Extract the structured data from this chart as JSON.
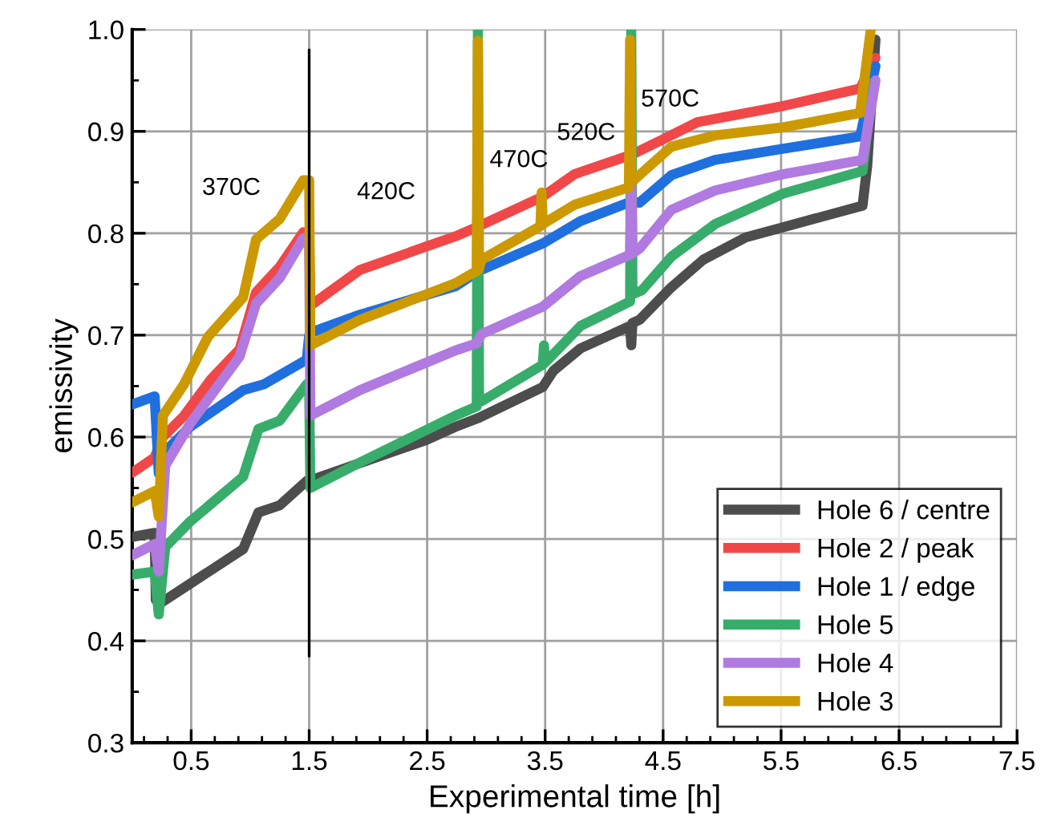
{
  "chart_data": {
    "type": "line",
    "xlabel": "Experimental time [h]",
    "ylabel": "emissivity",
    "xlim": [
      0,
      7.5
    ],
    "ylim": [
      0.3,
      1.0
    ],
    "xticks": [
      {
        "value": 0.1,
        "label": null
      },
      {
        "value": 0.3,
        "label": null
      },
      0.5,
      {
        "value": 0.7,
        "label": null
      },
      {
        "value": 0.9,
        "label": null
      },
      {
        "value": 1.1,
        "label": null
      },
      {
        "value": 1.3,
        "label": null
      },
      1.5,
      {
        "value": 1.7,
        "label": null
      },
      {
        "value": 1.9,
        "label": null
      },
      {
        "value": 2.1,
        "label": null
      },
      {
        "value": 2.3,
        "label": null
      },
      2.5,
      {
        "value": 2.7,
        "label": null
      },
      {
        "value": 2.9,
        "label": null
      },
      {
        "value": 3.1,
        "label": null
      },
      {
        "value": 3.3,
        "label": null
      },
      3.5,
      {
        "value": 3.7,
        "label": null
      },
      {
        "value": 3.9,
        "label": null
      },
      {
        "value": 4.1,
        "label": null
      },
      {
        "value": 4.3,
        "label": null
      },
      4.5,
      {
        "value": 4.7,
        "label": null
      },
      {
        "value": 4.9,
        "label": null
      },
      {
        "value": 5.1,
        "label": null
      },
      {
        "value": 5.3,
        "label": null
      },
      5.5,
      {
        "value": 5.7,
        "label": null
      },
      {
        "value": 5.9,
        "label": null
      },
      {
        "value": 6.1,
        "label": null
      },
      {
        "value": 6.3,
        "label": null
      },
      6.5,
      {
        "value": 6.7,
        "label": null
      },
      {
        "value": 6.9,
        "label": null
      },
      {
        "value": 7.1,
        "label": null
      },
      {
        "value": 7.3,
        "label": null
      },
      7.5
    ],
    "yticks": [
      0.3,
      {
        "value": 0.35,
        "label": null
      },
      0.4,
      {
        "value": 0.45,
        "label": null
      },
      0.5,
      {
        "value": 0.55,
        "label": null
      },
      0.6,
      {
        "value": 0.65,
        "label": null
      },
      0.7,
      {
        "value": 0.75,
        "label": null
      },
      0.8,
      {
        "value": 0.85,
        "label": null
      },
      0.9,
      {
        "value": 0.95,
        "label": null
      },
      {
        "value": 1.0,
        "label": "1.0"
      }
    ],
    "grid": true,
    "legend": "bottom right",
    "marker": "none",
    "line_style": "solid",
    "annotations": [
      "370C",
      "420C",
      "470C",
      "520C",
      "570C"
    ],
    "series": [
      {
        "color": "#000000",
        "x": [
          1.5,
          1.5
        ],
        "values": [
          0.385,
          0.98
        ]
      },
      {
        "name": "Hole 6 / centre",
        "color": "#4d4d4d",
        "x": [
          0,
          0.19,
          0.2,
          0.24,
          0.94,
          1.07,
          1.25,
          1.48,
          1.545,
          2.49,
          2.74,
          2.94,
          3.48,
          3.57,
          3.8,
          4.22,
          4.23,
          4.24,
          4.3,
          4.57,
          4.84,
          5.2,
          5.52,
          6.19,
          6.23,
          6.3
        ],
        "values": [
          0.502,
          0.506,
          0.44,
          0.437,
          0.49,
          0.526,
          0.533,
          0.557,
          0.559,
          0.597,
          0.61,
          0.619,
          0.649,
          0.665,
          0.687,
          0.709,
          0.69,
          0.712,
          0.715,
          0.747,
          0.774,
          0.796,
          0.806,
          0.827,
          0.866,
          0.99
        ]
      },
      {
        "name": "Hole 2 / peak",
        "color": "#f04848",
        "x": [
          0,
          0.19,
          0.26,
          0.44,
          0.67,
          0.91,
          1.05,
          1.25,
          1.45,
          1.5,
          1.51,
          1.93,
          2.74,
          2.94,
          3.48,
          3.75,
          4.23,
          4.48,
          4.79,
          5.52,
          6.17,
          6.3
        ],
        "values": [
          0.565,
          0.58,
          0.6,
          0.621,
          0.657,
          0.686,
          0.742,
          0.767,
          0.801,
          0.8,
          0.729,
          0.764,
          0.797,
          0.807,
          0.836,
          0.858,
          0.877,
          0.891,
          0.909,
          0.925,
          0.942,
          0.972
        ]
      },
      {
        "name": "Hole 1 / edge",
        "color": "#1f6fdf",
        "x": [
          0,
          0.19,
          0.225,
          0.28,
          0.49,
          0.94,
          1.12,
          1.48,
          1.5,
          1.545,
          1.93,
          2.74,
          2.94,
          3.48,
          3.8,
          4.23,
          4.3,
          4.57,
          4.94,
          5.52,
          6.17,
          6.3
        ],
        "values": [
          0.632,
          0.64,
          0.564,
          0.586,
          0.61,
          0.646,
          0.652,
          0.676,
          0.7,
          0.704,
          0.72,
          0.748,
          0.763,
          0.79,
          0.812,
          0.831,
          0.83,
          0.857,
          0.872,
          0.883,
          0.895,
          0.964
        ]
      },
      {
        "name": "Hole 5",
        "color": "#38ad6b",
        "x": [
          0,
          0.19,
          0.225,
          0.28,
          0.49,
          0.94,
          1.07,
          1.25,
          1.48,
          1.5,
          1.51,
          1.93,
          2.74,
          2.92,
          2.93,
          2.94,
          2.96,
          3.48,
          3.49,
          3.5,
          3.8,
          4.22,
          4.23,
          4.24,
          4.32,
          4.57,
          4.94,
          5.52,
          6.19,
          6.28
        ],
        "values": [
          0.465,
          0.468,
          0.426,
          0.492,
          0.517,
          0.561,
          0.608,
          0.616,
          0.652,
          0.65,
          0.55,
          0.575,
          0.621,
          0.63,
          1.0,
          0.635,
          0.635,
          0.671,
          0.69,
          0.673,
          0.709,
          0.733,
          1.0,
          0.74,
          0.744,
          0.777,
          0.809,
          0.839,
          0.861,
          0.948
        ]
      },
      {
        "name": "Hole 4",
        "color": "#b07ae0",
        "x": [
          0,
          0.19,
          0.225,
          0.28,
          0.49,
          0.91,
          1.05,
          1.25,
          1.45,
          1.5,
          1.51,
          1.93,
          2.74,
          2.92,
          2.96,
          3.48,
          3.8,
          4.22,
          4.23,
          4.24,
          4.3,
          4.57,
          4.94,
          5.52,
          6.19,
          6.3
        ],
        "values": [
          0.484,
          0.495,
          0.468,
          0.572,
          0.613,
          0.679,
          0.731,
          0.756,
          0.795,
          0.79,
          0.621,
          0.646,
          0.685,
          0.692,
          0.701,
          0.728,
          0.758,
          0.779,
          0.85,
          0.78,
          0.785,
          0.823,
          0.842,
          0.858,
          0.872,
          0.95
        ]
      },
      {
        "name": "Hole 3",
        "color": "#cc9900",
        "x": [
          0,
          0.19,
          0.225,
          0.26,
          0.44,
          0.64,
          0.94,
          1.05,
          1.25,
          1.45,
          1.5,
          1.51,
          1.93,
          2.74,
          2.92,
          2.93,
          2.94,
          2.96,
          3.46,
          3.47,
          3.48,
          3.75,
          4.21,
          4.22,
          4.23,
          4.57,
          4.94,
          5.52,
          6.17,
          6.26
        ],
        "values": [
          0.536,
          0.547,
          0.522,
          0.621,
          0.652,
          0.698,
          0.737,
          0.794,
          0.814,
          0.852,
          0.852,
          0.69,
          0.715,
          0.751,
          0.763,
          0.989,
          0.765,
          0.774,
          0.807,
          0.84,
          0.809,
          0.828,
          0.845,
          0.99,
          0.85,
          0.885,
          0.896,
          0.904,
          0.918,
          1.0
        ]
      }
    ]
  }
}
